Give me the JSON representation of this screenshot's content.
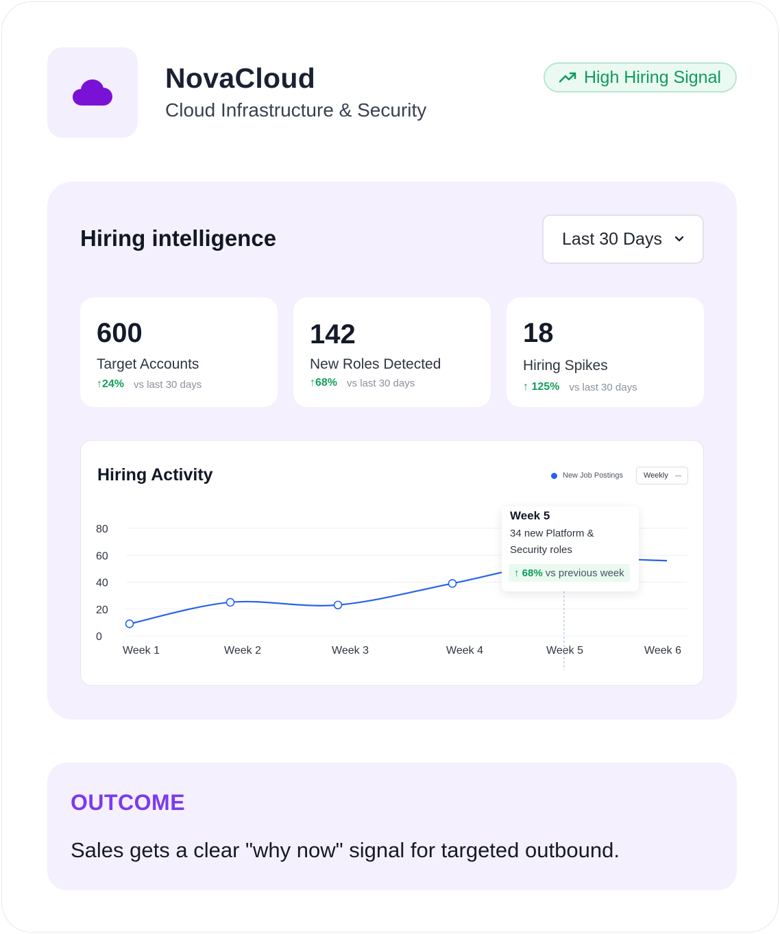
{
  "header": {
    "company_name": "NovaCloud",
    "company_tagline": "Cloud Infrastructure & Security",
    "logo_icon": "cloud-icon",
    "signal_badge": {
      "label": "High Hiring Signal",
      "icon": "trending-up-icon",
      "color": "#0f9a5a"
    }
  },
  "intelligence": {
    "title": "Hiring intelligence",
    "range_select": {
      "value": "Last 30 Days",
      "icon": "chevron-down-icon"
    },
    "stats": [
      {
        "value": "600",
        "label": "Target Accounts",
        "delta": "24%",
        "delta_note": "vs last 30 days"
      },
      {
        "value": "142",
        "label": "New Roles Detected",
        "delta": "68%",
        "delta_note": "vs last 30 days"
      },
      {
        "value": "18",
        "label": "Hiring Spikes",
        "delta": "125%",
        "delta_note": "vs last 30 days"
      }
    ]
  },
  "chart_data": {
    "type": "line",
    "title": "Hiring Activity",
    "categories": [
      "Week 1",
      "Week 2",
      "Week 3",
      "Week 4",
      "Week 5",
      "Week 6"
    ],
    "series": [
      {
        "name": "New Job Postings",
        "values": [
          9,
          25,
          23,
          39,
          56,
          56
        ],
        "color": "#2563eb"
      }
    ],
    "yticks": [
      "0",
      "20",
      "40",
      "60",
      "80"
    ],
    "ylim": [
      0,
      80
    ],
    "interval": "Weekly",
    "grid": true,
    "legend": "top-right",
    "tooltip": {
      "title": "Week 5",
      "text": "34 new Platform & Security roles",
      "delta": "68%",
      "delta_note": "vs previous week"
    }
  },
  "outcome": {
    "label": "OUTCOME",
    "text": "Sales gets a clear \"why now\" signal for targeted outbound."
  }
}
